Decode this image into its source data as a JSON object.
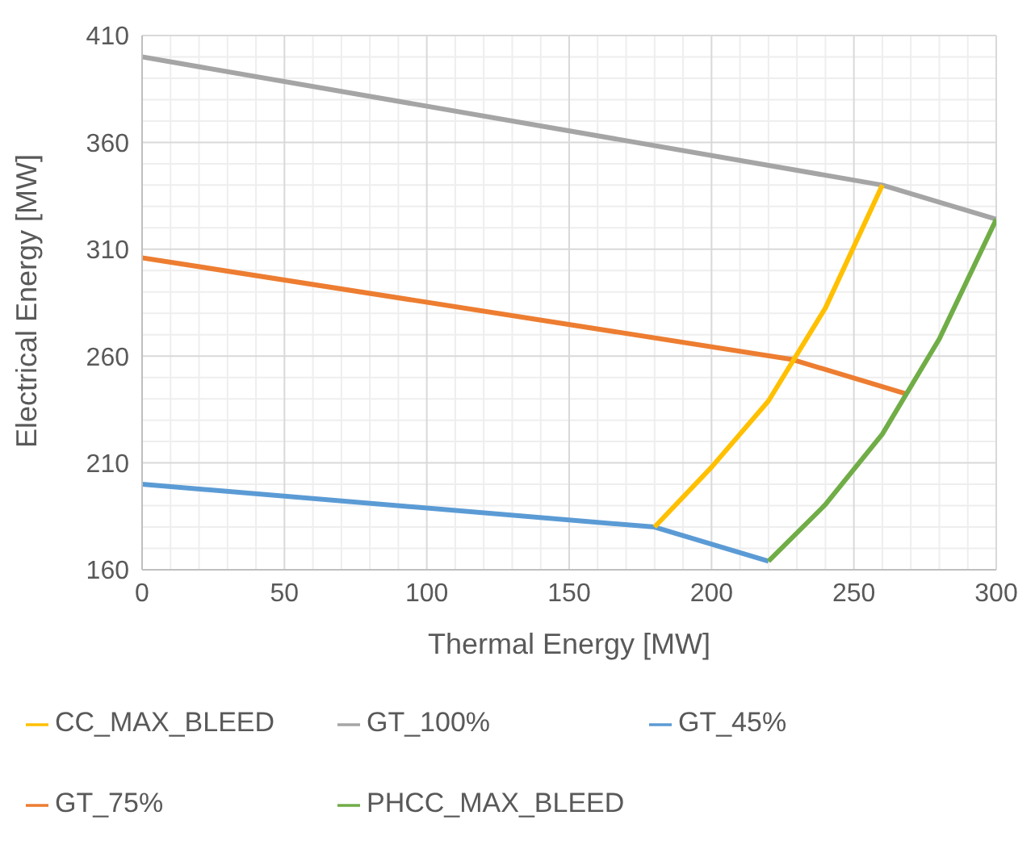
{
  "chart_data": {
    "type": "line",
    "xlabel": "Thermal Energy [MW]",
    "ylabel": "Electrical Energy [MW]",
    "xlim": [
      0,
      300
    ],
    "xticks": [
      0,
      50,
      100,
      150,
      200,
      250,
      300
    ],
    "ylim": [
      160,
      410
    ],
    "yticks": [
      160,
      210,
      260,
      310,
      360,
      410
    ],
    "grid": true,
    "legend": "bottom",
    "marker": "none",
    "line_style": "solid",
    "series": [
      {
        "name": "GT_45%",
        "color": "#5b9bd5",
        "x": [
          0,
          180,
          220
        ],
        "values": [
          200,
          180,
          164
        ]
      },
      {
        "name": "GT_75%",
        "color": "#ed7d31",
        "x": [
          0,
          228,
          268
        ],
        "values": [
          306,
          258.5,
          242.5
        ]
      },
      {
        "name": "GT_100%",
        "color": "#a5a5a5",
        "x": [
          0,
          260,
          300
        ],
        "values": [
          400,
          340,
          324
        ]
      },
      {
        "name": "CC_MAX_BLEED",
        "color": "#ffc000",
        "x": [
          180,
          200,
          220,
          240,
          260
        ],
        "values": [
          180,
          208,
          239,
          282.5,
          340
        ]
      },
      {
        "name": "PHCC_MAX_BLEED",
        "color": "#70ad47",
        "x": [
          220,
          240,
          260,
          280,
          300
        ],
        "values": [
          164,
          190.5,
          223.5,
          268,
          324
        ]
      }
    ]
  }
}
